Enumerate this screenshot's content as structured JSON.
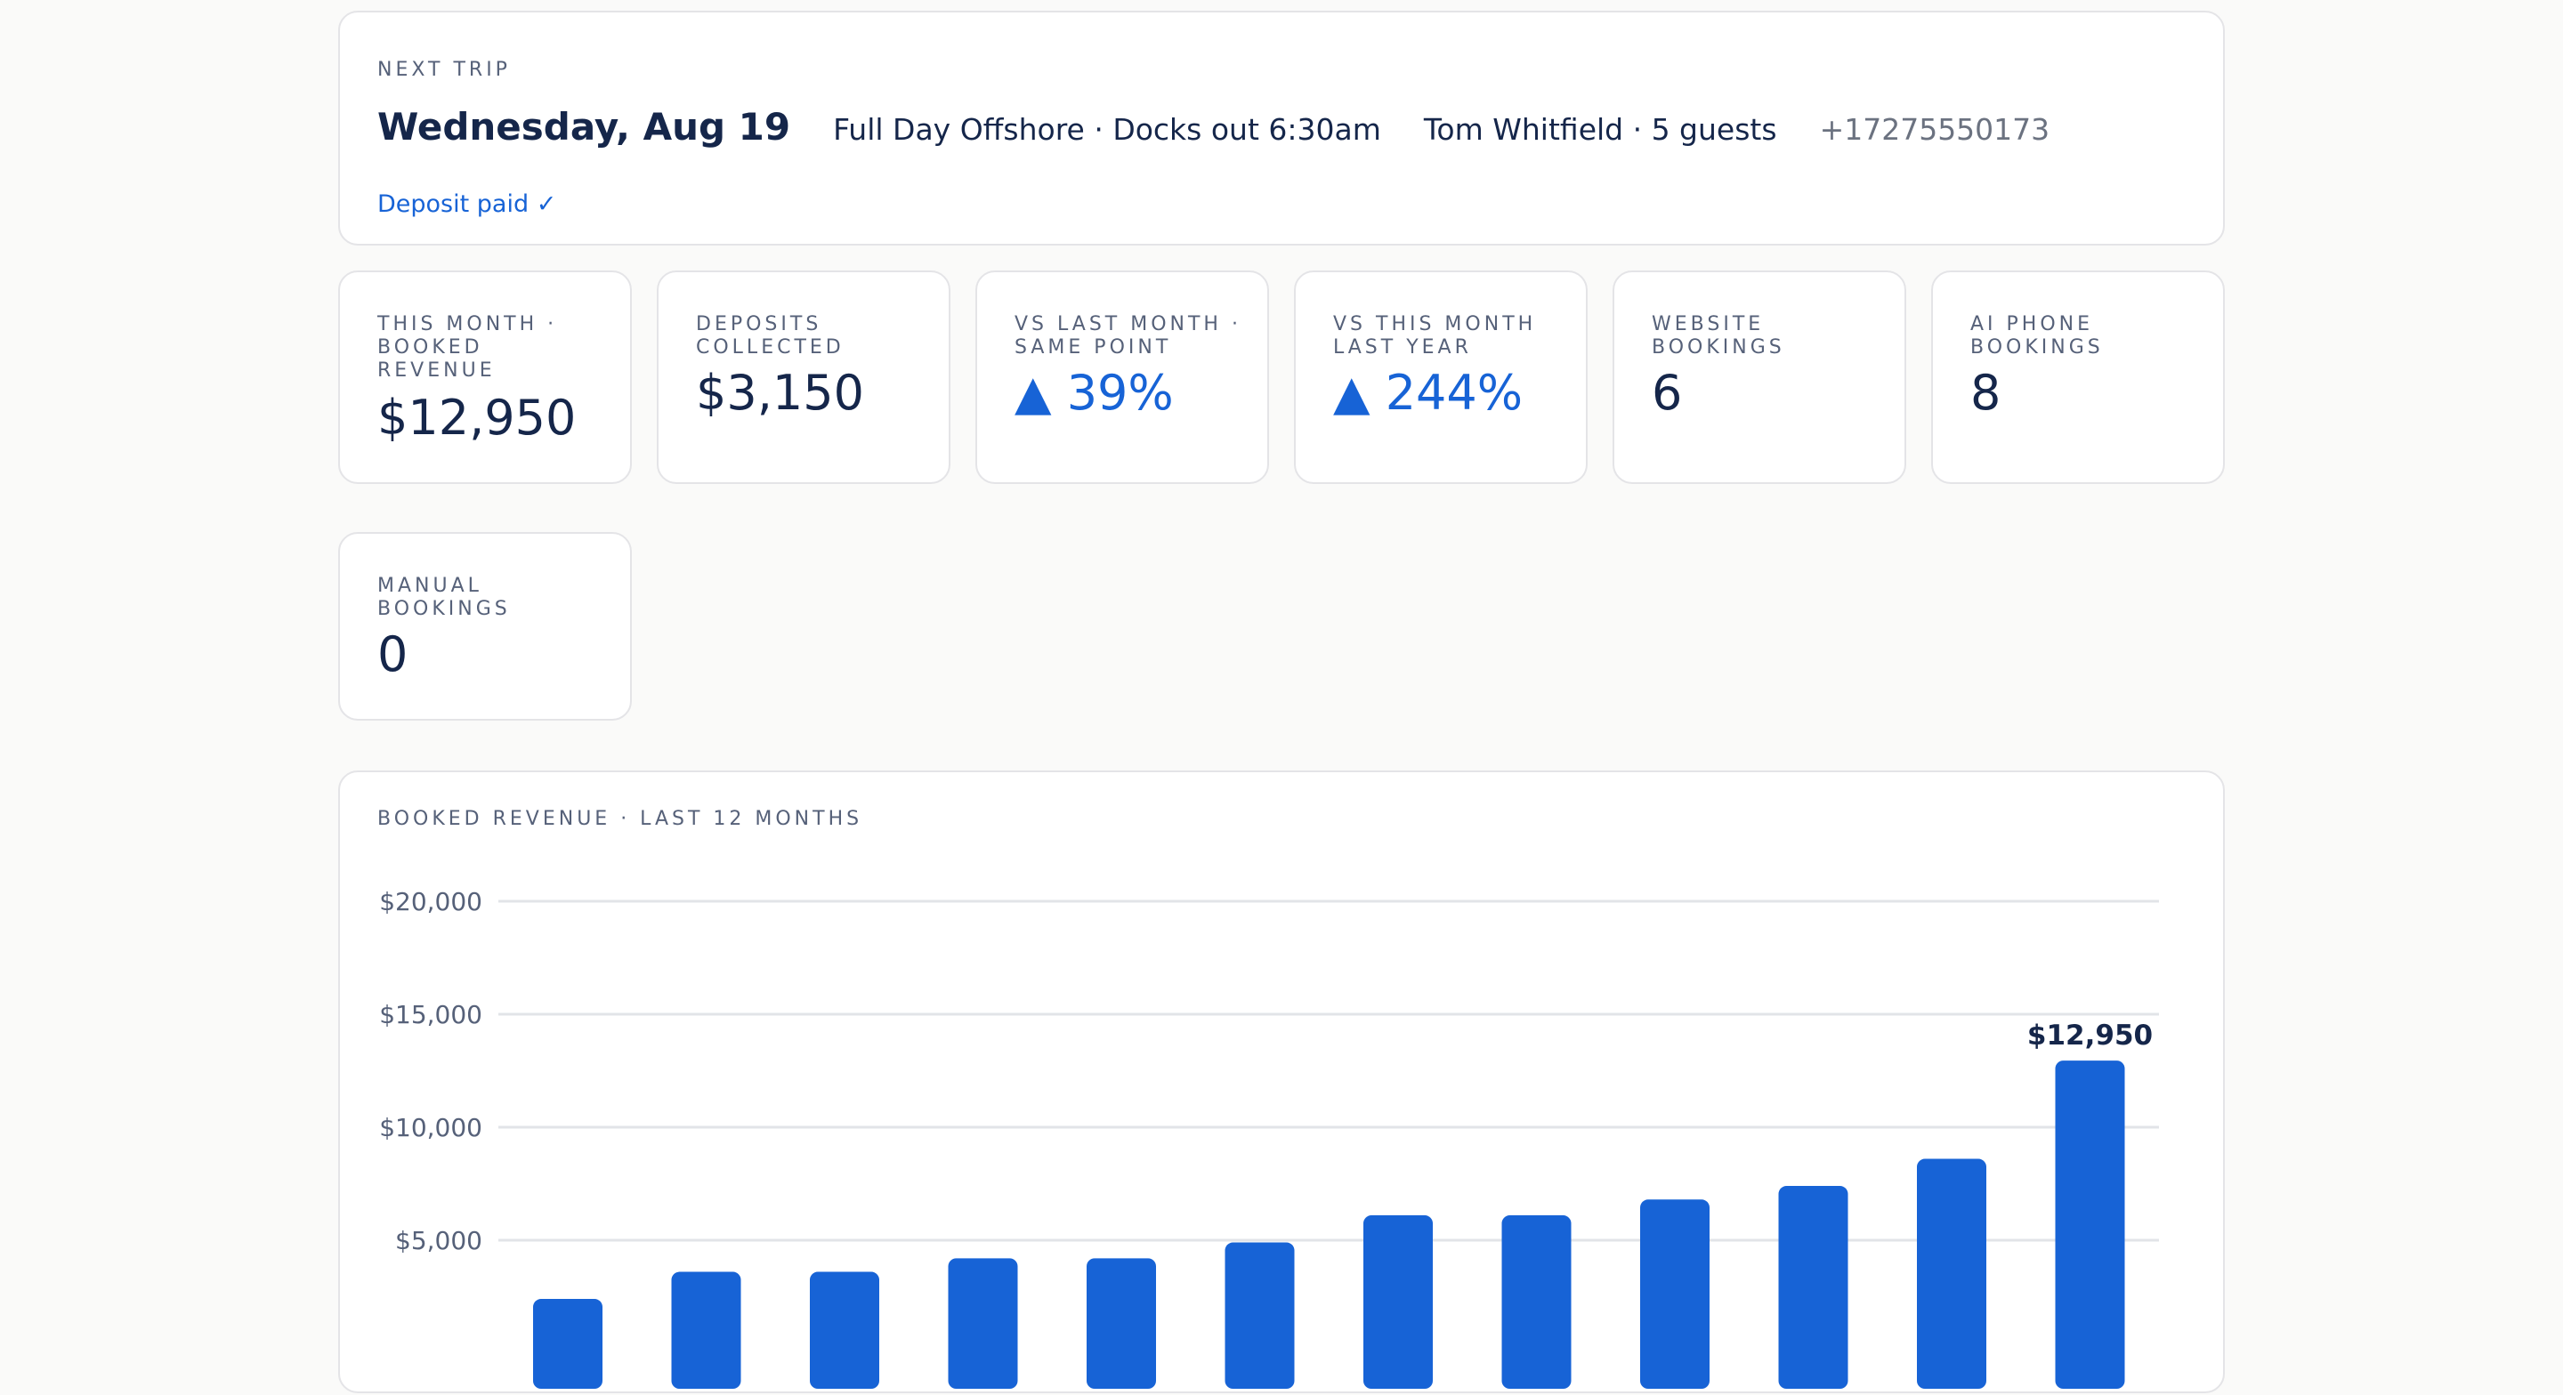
{
  "next_trip": {
    "label": "NEXT TRIP",
    "date": "Wednesday, Aug 19",
    "trip": "Full Day Offshore · Docks out 6:30am",
    "guest": "Tom Whitfield · 5 guests",
    "phone": "+17275550173",
    "deposit_status": "Deposit paid ✓"
  },
  "stats": [
    {
      "label": "THIS MONTH · BOOKED REVENUE",
      "value": "$12,950"
    },
    {
      "label": "DEPOSITS COLLECTED",
      "value": "$3,150"
    },
    {
      "label": "VS LAST MONTH · SAME POINT",
      "value": "▲ 39%"
    },
    {
      "label": "VS THIS MONTH LAST YEAR",
      "value": "▲ 244%"
    },
    {
      "label": "WEBSITE BOOKINGS",
      "value": "6"
    },
    {
      "label": "AI PHONE BOOKINGS",
      "value": "8"
    },
    {
      "label": "MANUAL BOOKINGS",
      "value": "0"
    }
  ],
  "colors": {
    "accent": "#1763d6",
    "text": "#15264a",
    "muted": "#566179"
  },
  "chart_data": {
    "type": "bar",
    "title": "BOOKED REVENUE · LAST 12 MONTHS",
    "y_ticks": [
      "$5,000",
      "$10,000",
      "$15,000",
      "$20,000"
    ],
    "y_tick_values": [
      5000,
      10000,
      15000,
      20000
    ],
    "ylim": [
      0,
      20000
    ],
    "grid": true,
    "values": [
      2400,
      3600,
      3600,
      4200,
      4200,
      4900,
      6100,
      6100,
      6800,
      7400,
      8600,
      12950
    ],
    "data_labels": {
      "11": "$12,950"
    }
  }
}
